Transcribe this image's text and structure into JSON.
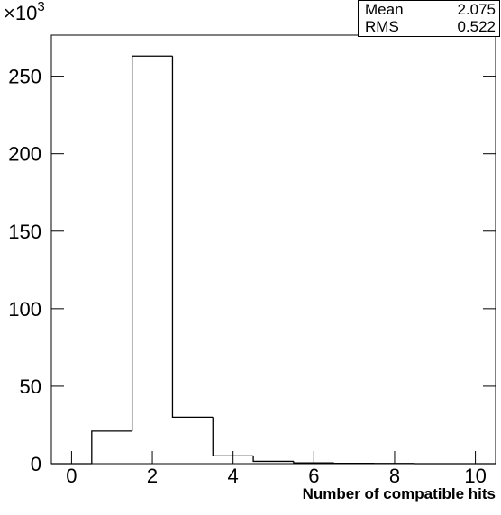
{
  "chart_data": {
    "type": "histogram",
    "x_label": "Number of compatible hits",
    "y_multiplier": "×10",
    "y_multiplier_exp": "3",
    "bins": [
      -0.5,
      0.5,
      1.5,
      2.5,
      3.5,
      4.5,
      5.5,
      6.5,
      7.5,
      8.5,
      9.5,
      10.5
    ],
    "values": [
      0,
      21,
      263,
      30,
      5,
      1.5,
      0.5,
      0.2,
      0.1,
      0,
      0
    ],
    "color": "#000000",
    "xlim": [
      -0.5,
      10.5
    ],
    "xticks": [
      0,
      2,
      4,
      6,
      8,
      10
    ],
    "ylim": [
      0,
      276.5
    ],
    "yticks": [
      0,
      50,
      100,
      150,
      200,
      250
    ],
    "stats": {
      "mean_label": "Mean",
      "mean": 2.075,
      "rms_label": "RMS",
      "rms": 0.522
    }
  }
}
